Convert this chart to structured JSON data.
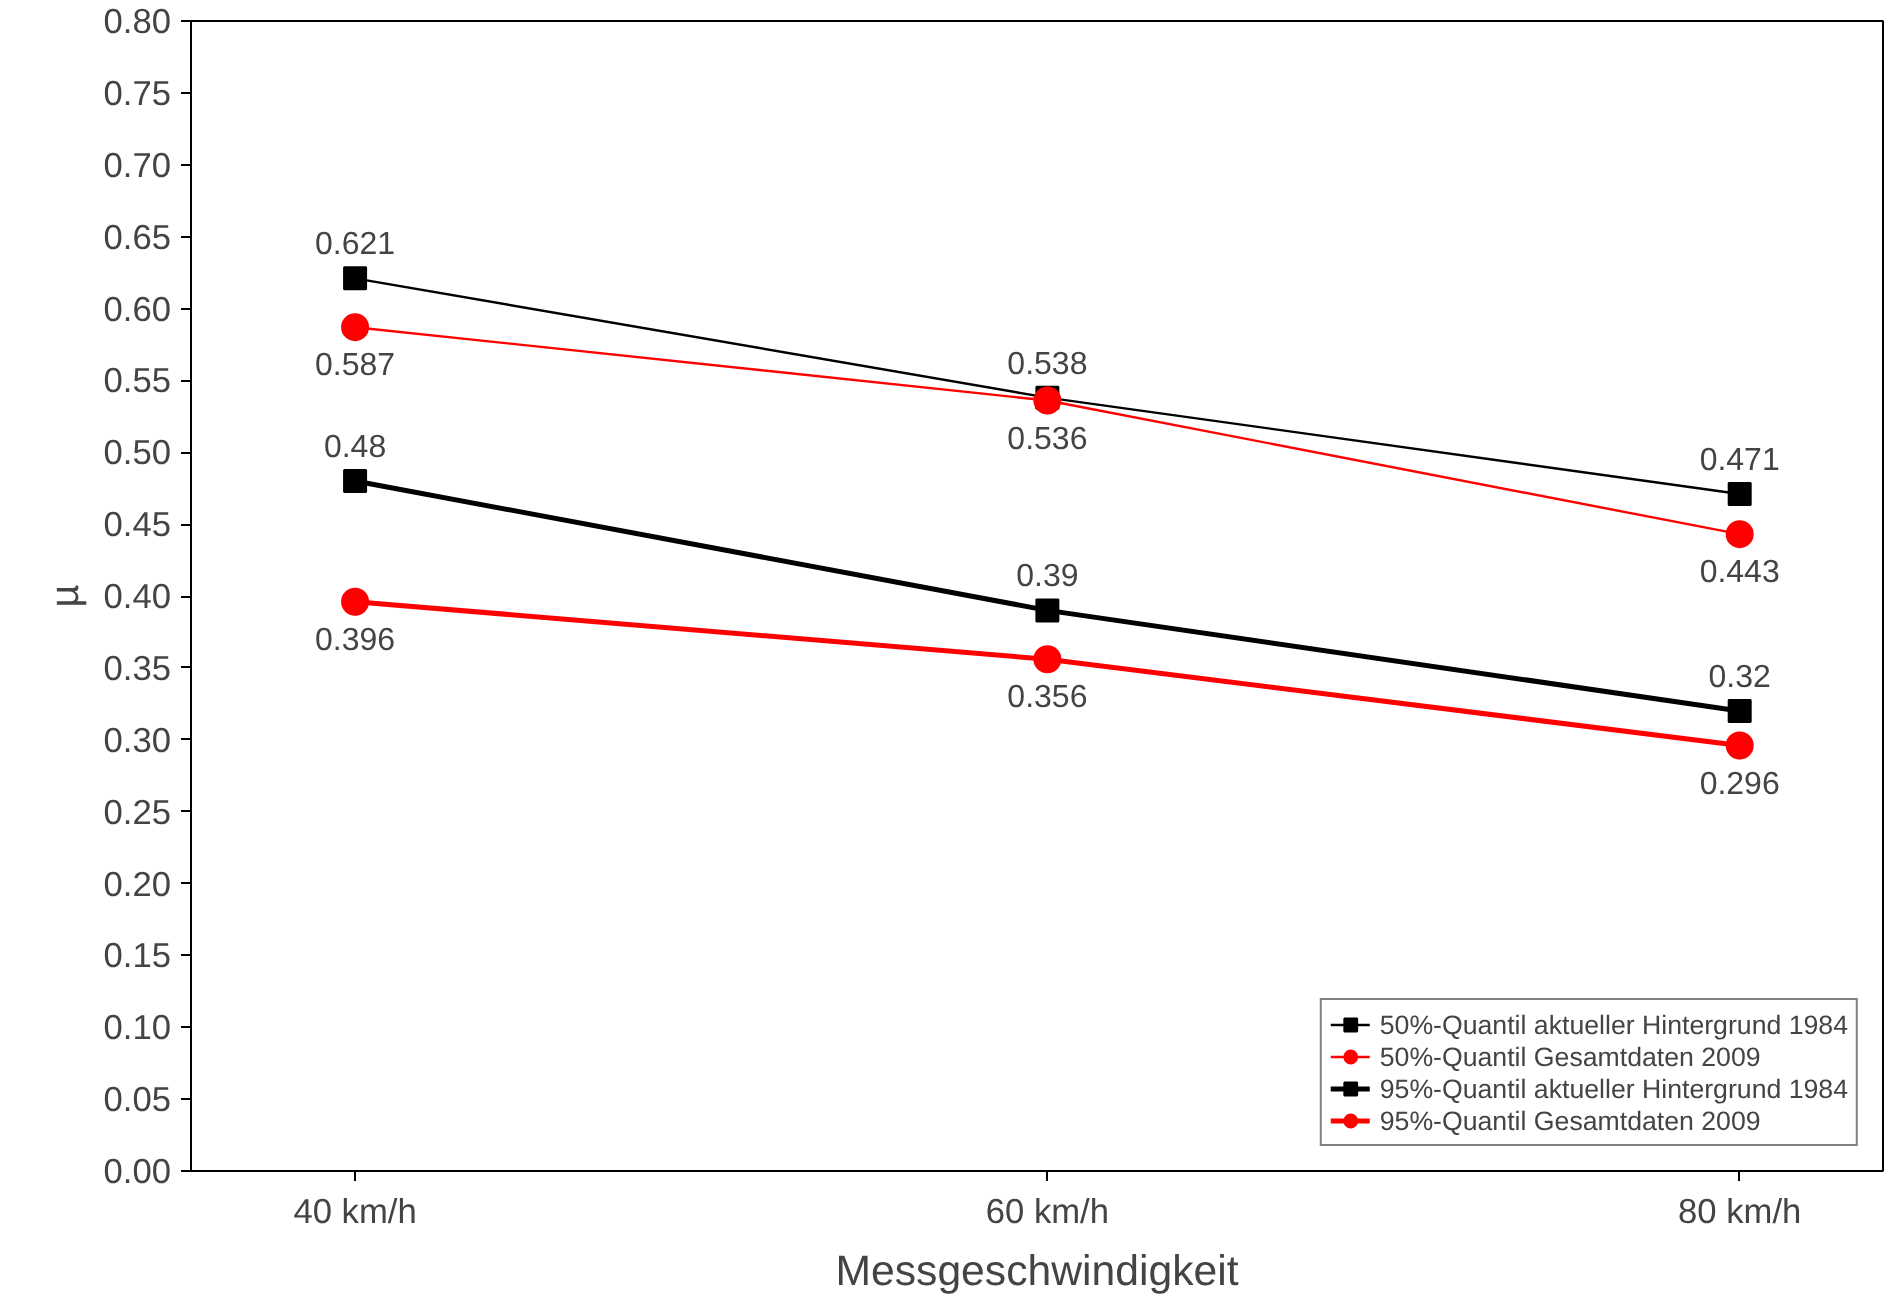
{
  "chart_data": {
    "type": "line",
    "xlabel": "Messgeschwindigkeit",
    "ylabel": "µ",
    "categories": [
      "40 km/h",
      "60 km/h",
      "80 km/h"
    ],
    "series": [
      {
        "name": "50%-Quantil aktueller Hintergrund 1984",
        "color": "#000000",
        "values": [
          0.621,
          0.538,
          0.471
        ],
        "marker": "square"
      },
      {
        "name": "50%-Quantil Gesamtdaten 2009",
        "color": "#ff0000",
        "values": [
          0.587,
          0.536,
          0.443
        ],
        "marker": "circle"
      },
      {
        "name": "95%-Quantil aktueller Hintergrund 1984",
        "color": "#000000",
        "values": [
          0.48,
          0.39,
          0.32
        ],
        "marker": "square"
      },
      {
        "name": "95%-Quantil Gesamtdaten 2009",
        "color": "#ff0000",
        "values": [
          0.396,
          0.356,
          0.296
        ],
        "marker": "circle"
      }
    ],
    "ylim": [
      0,
      0.8
    ],
    "yticks": [
      {
        "value": 0,
        "label": "0.00"
      },
      {
        "value": 0.05,
        "label": "0.05"
      },
      {
        "value": 0.1,
        "label": "0.10"
      },
      {
        "value": 0.15,
        "label": "0.15"
      },
      {
        "value": 0.2,
        "label": "0.20"
      },
      {
        "value": 0.25,
        "label": "0.25"
      },
      {
        "value": 0.3,
        "label": "0.30"
      },
      {
        "value": 0.35,
        "label": "0.35"
      },
      {
        "value": 0.4,
        "label": "0.40"
      },
      {
        "value": 0.45,
        "label": "0.45"
      },
      {
        "value": 0.5,
        "label": "0.50"
      },
      {
        "value": 0.55,
        "label": "0.55"
      },
      {
        "value": 0.6,
        "label": "0.60"
      },
      {
        "value": 0.65,
        "label": "0.65"
      },
      {
        "value": 0.7,
        "label": "0.70"
      },
      {
        "value": 0.75,
        "label": "0.75"
      },
      {
        "value": 0.8,
        "label": "0.80"
      }
    ],
    "grid": false,
    "legend": "bottom right",
    "data_labels": true,
    "line_style": "solid"
  }
}
